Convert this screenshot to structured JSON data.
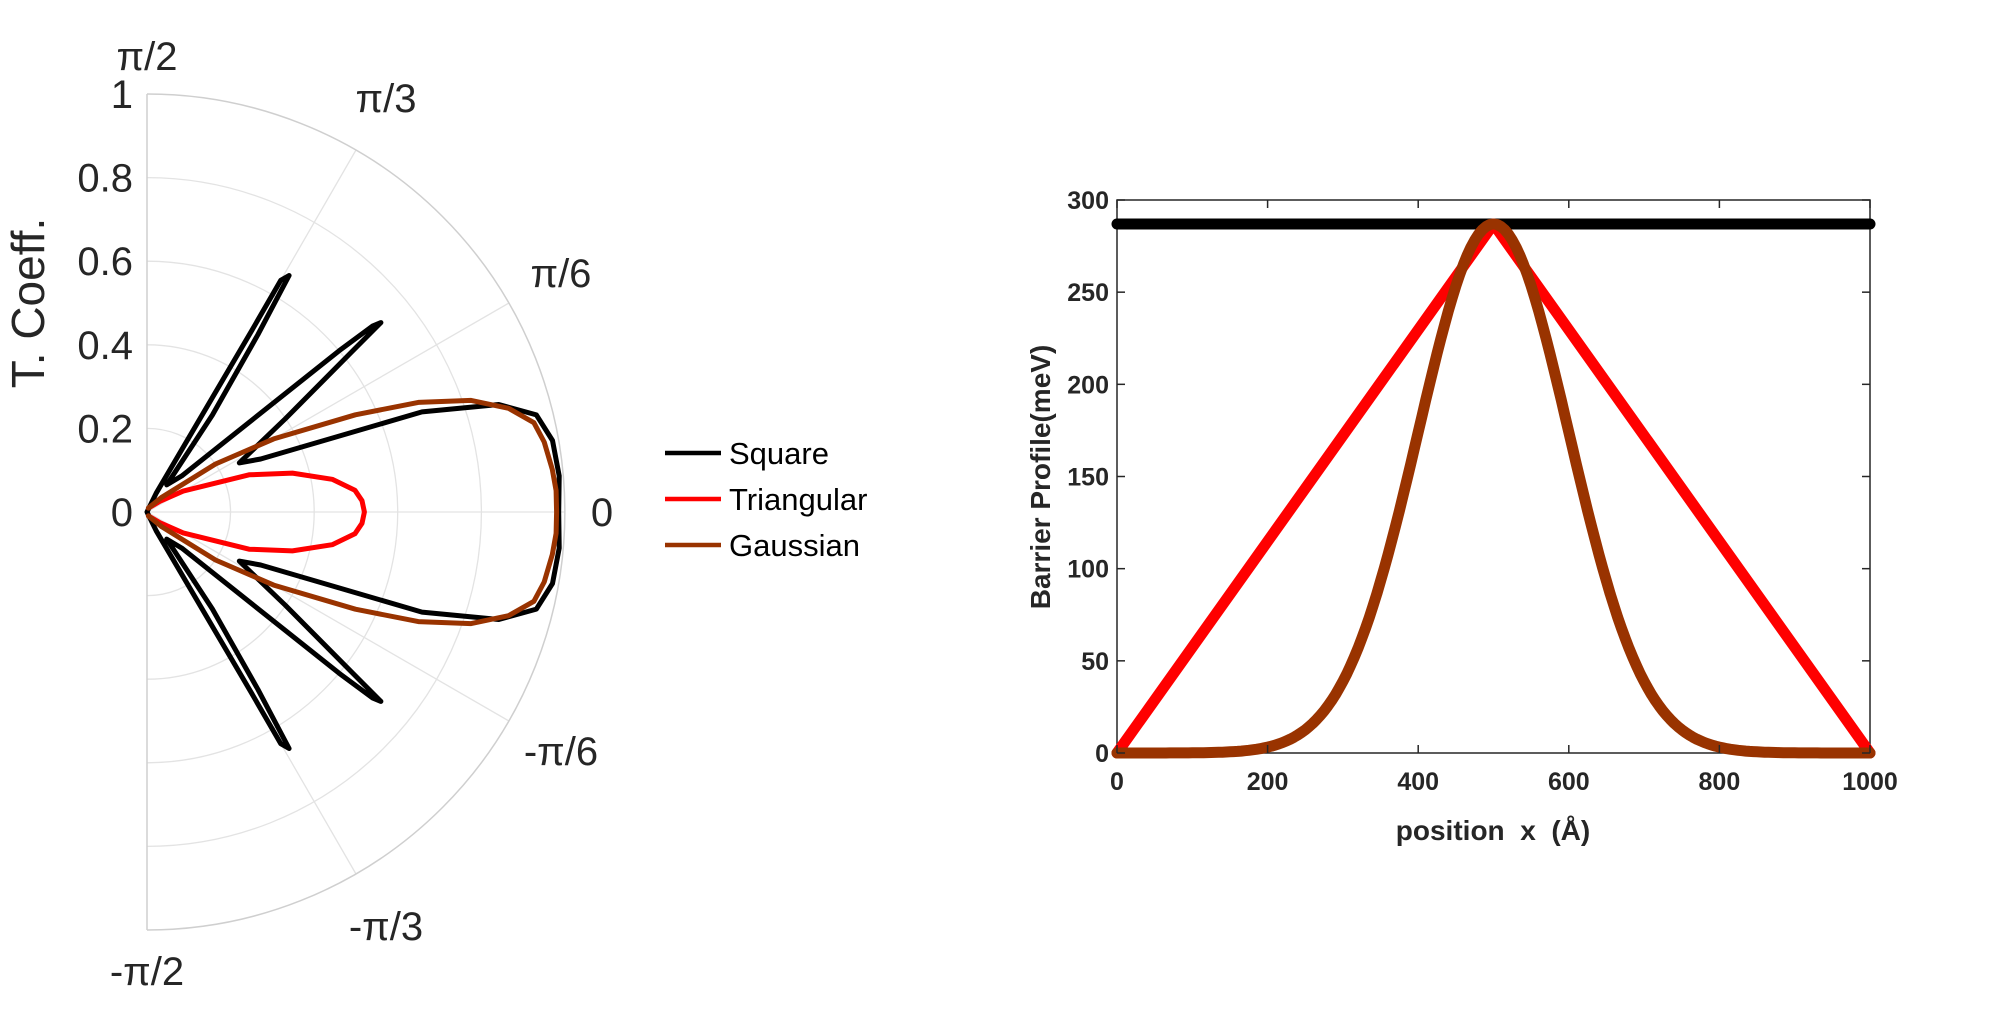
{
  "chart_data": [
    {
      "type": "polar",
      "title": "",
      "ylabel": "T. Coeff.",
      "rlim": [
        0,
        1
      ],
      "theta_range_deg": [
        -90,
        90
      ],
      "r_ticks": [
        "0",
        "0.2",
        "0.4",
        "0.6",
        "0.8",
        "1"
      ],
      "theta_ticks": [
        "π/2",
        "π/3",
        "π/6",
        "0",
        "-π/6",
        "-π/3",
        "-π/2"
      ],
      "grid": true,
      "legend": {
        "placement": "right",
        "entries": [
          {
            "label": "Square",
            "color": "#000000"
          },
          {
            "label": "Triangular",
            "color": "#ff0000"
          },
          {
            "label": "Gaussian",
            "color": "#993300"
          }
        ]
      },
      "series": [
        {
          "name": "Square",
          "color": "#000000",
          "points_theta_deg_r": [
            [
              90,
              0
            ],
            [
              64,
              0.05
            ],
            [
              60,
              0.5
            ],
            [
              60,
              0.64
            ],
            [
              59,
              0.66
            ],
            [
              58,
              0.5
            ],
            [
              56,
              0.28
            ],
            [
              54,
              0.08
            ],
            [
              46,
              0.12
            ],
            [
              40,
              0.6
            ],
            [
              39.5,
              0.7
            ],
            [
              39,
              0.72
            ],
            [
              38,
              0.62
            ],
            [
              34,
              0.4
            ],
            [
              28,
              0.25
            ],
            [
              25,
              0.3
            ],
            [
              20,
              0.7
            ],
            [
              17,
              0.88
            ],
            [
              14,
              0.96
            ],
            [
              10,
              0.985
            ],
            [
              5,
              0.99
            ],
            [
              0,
              0.985
            ],
            [
              -5,
              0.99
            ],
            [
              -10,
              0.985
            ],
            [
              -14,
              0.96
            ],
            [
              -17,
              0.88
            ],
            [
              -20,
              0.7
            ],
            [
              -25,
              0.3
            ],
            [
              -28,
              0.25
            ],
            [
              -34,
              0.4
            ],
            [
              -38,
              0.62
            ],
            [
              -39,
              0.72
            ],
            [
              -39.5,
              0.7
            ],
            [
              -40,
              0.6
            ],
            [
              -46,
              0.12
            ],
            [
              -54,
              0.08
            ],
            [
              -56,
              0.28
            ],
            [
              -58,
              0.5
            ],
            [
              -59,
              0.66
            ],
            [
              -60,
              0.64
            ],
            [
              -60,
              0.5
            ],
            [
              -64,
              0.05
            ],
            [
              -90,
              0
            ]
          ]
        },
        {
          "name": "Triangular",
          "color": "#ff0000",
          "points_theta_deg_r": [
            [
              70,
              0.01
            ],
            [
              40,
              0.04
            ],
            [
              30,
              0.1
            ],
            [
              20,
              0.26
            ],
            [
              15,
              0.36
            ],
            [
              10,
              0.45
            ],
            [
              6,
              0.5
            ],
            [
              3,
              0.515
            ],
            [
              0,
              0.52
            ],
            [
              -3,
              0.515
            ],
            [
              -6,
              0.5
            ],
            [
              -10,
              0.45
            ],
            [
              -15,
              0.36
            ],
            [
              -20,
              0.26
            ],
            [
              -30,
              0.1
            ],
            [
              -40,
              0.04
            ],
            [
              -70,
              0.01
            ]
          ]
        },
        {
          "name": "Gaussian",
          "color": "#993300",
          "points_theta_deg_r": [
            [
              70,
              0.01
            ],
            [
              45,
              0.05
            ],
            [
              35,
              0.2
            ],
            [
              30,
              0.35
            ],
            [
              25,
              0.55
            ],
            [
              22,
              0.7
            ],
            [
              19,
              0.82
            ],
            [
              16,
              0.9
            ],
            [
              13,
              0.95
            ],
            [
              10,
              0.965
            ],
            [
              6,
              0.975
            ],
            [
              3,
              0.98
            ],
            [
              0,
              0.98
            ],
            [
              -3,
              0.98
            ],
            [
              -6,
              0.975
            ],
            [
              -10,
              0.965
            ],
            [
              -13,
              0.95
            ],
            [
              -16,
              0.9
            ],
            [
              -19,
              0.82
            ],
            [
              -22,
              0.7
            ],
            [
              -25,
              0.55
            ],
            [
              -30,
              0.35
            ],
            [
              -35,
              0.2
            ],
            [
              -45,
              0.05
            ],
            [
              -70,
              0.01
            ]
          ]
        }
      ]
    },
    {
      "type": "line",
      "title": "",
      "xlabel": "position  x  (Å)",
      "ylabel": "Barrier Profile(meV)",
      "xlim": [
        0,
        1000
      ],
      "ylim": [
        0,
        300
      ],
      "x_ticks": [
        "0",
        "200",
        "400",
        "600",
        "800",
        "1000"
      ],
      "y_ticks": [
        "0",
        "50",
        "100",
        "150",
        "200",
        "250",
        "300"
      ],
      "grid": false,
      "series": [
        {
          "name": "Square",
          "color": "#000000",
          "x": [
            0,
            1000
          ],
          "y": [
            287,
            287
          ]
        },
        {
          "name": "Triangular",
          "color": "#ff0000",
          "x": [
            0,
            500,
            1000
          ],
          "y": [
            0,
            287,
            0
          ]
        },
        {
          "name": "Gaussian",
          "color": "#993300",
          "gaussian": {
            "amplitude": 287,
            "center": 500,
            "sigma": 100,
            "x_start": 0,
            "x_end": 1000
          }
        }
      ]
    }
  ]
}
